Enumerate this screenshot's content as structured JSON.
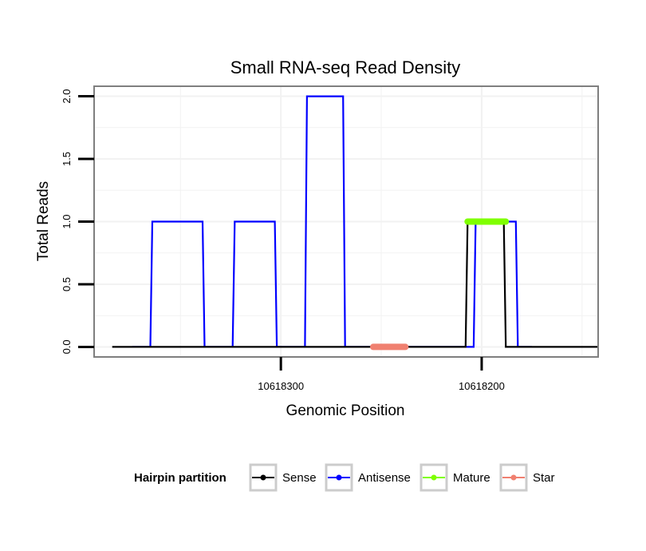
{
  "chart_data": {
    "type": "line",
    "title": "Small RNA-seq Read Density",
    "xlabel": "Genomic Position",
    "ylabel": "Total Reads",
    "x_reversed": true,
    "xlim": [
      10618393,
      10618142
    ],
    "ylim": [
      -0.08,
      2.08
    ],
    "x_ticks": [
      10618300,
      10618200
    ],
    "x_tick_labels": [
      "10618300",
      "10618200"
    ],
    "y_ticks": [
      0.0,
      0.5,
      1.0,
      1.5,
      2.0
    ],
    "y_tick_labels": [
      "0.0",
      "0.5",
      "1.0",
      "1.5",
      "2.0"
    ],
    "grid": true,
    "legend": {
      "title": "Hairpin partition",
      "position": "bottom",
      "entries": [
        {
          "label": "Sense",
          "color": "#000000"
        },
        {
          "label": "Antisense",
          "color": "#0000ff"
        },
        {
          "label": "Mature",
          "color": "#7fff00"
        },
        {
          "label": "Star",
          "color": "#f08070"
        }
      ]
    },
    "series": [
      {
        "name": "Antisense",
        "color": "#0000ff",
        "x": [
          10618374,
          10618365,
          10618364,
          10618339,
          10618338,
          10618324,
          10618323,
          10618303,
          10618302,
          10618288,
          10618287,
          10618269,
          10618268,
          10618204,
          10618203,
          10618191,
          10618190,
          10618183,
          10618182,
          10618175
        ],
        "y": [
          0,
          0,
          1,
          1,
          0,
          0,
          1,
          1,
          0,
          0,
          2,
          2,
          0,
          0,
          1,
          1,
          1,
          1,
          0,
          0
        ]
      },
      {
        "name": "Sense",
        "color": "#000000",
        "x": [
          10618384,
          10618208,
          10618207,
          10618189,
          10618188,
          10618142
        ],
        "y": [
          0,
          0,
          1,
          1,
          0,
          0
        ]
      },
      {
        "name": "Mature",
        "color": "#7fff00",
        "x": [
          10618207,
          10618188
        ],
        "y": [
          1,
          1
        ]
      },
      {
        "name": "Star",
        "color": "#f08070",
        "x": [
          10618254,
          10618238
        ],
        "y": [
          0,
          0
        ]
      }
    ]
  }
}
